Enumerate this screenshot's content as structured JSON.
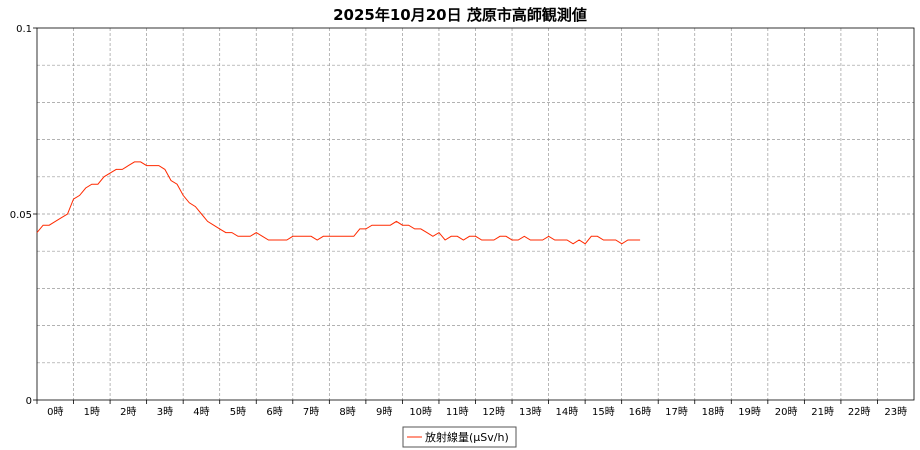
{
  "colors": {
    "series": "#ff2a00",
    "grid": "#999999",
    "axis": "#000000",
    "background": "#ffffff"
  },
  "chart_data": {
    "type": "line",
    "title": "2025年10月20日 茂原市高師観測値",
    "xlabel": "",
    "ylabel": "",
    "xlim": [
      0,
      24
    ],
    "ylim": [
      0,
      0.1
    ],
    "grid": true,
    "legend_position": "bottom-center",
    "x_tick_labels": [
      "0時",
      "1時",
      "2時",
      "3時",
      "4時",
      "5時",
      "6時",
      "7時",
      "8時",
      "9時",
      "10時",
      "11時",
      "12時",
      "13時",
      "14時",
      "15時",
      "16時",
      "17時",
      "18時",
      "19時",
      "20時",
      "21時",
      "22時",
      "23時"
    ],
    "y_tick_labels": [
      "0",
      "0.05",
      "0.1"
    ],
    "y_ticks": [
      0,
      0.05,
      0.1
    ],
    "series": [
      {
        "name": "放射線量(μSv/h)",
        "x_step_hours": 0.1667,
        "values": [
          0.045,
          0.047,
          0.047,
          0.048,
          0.049,
          0.05,
          0.054,
          0.055,
          0.057,
          0.058,
          0.058,
          0.06,
          0.061,
          0.062,
          0.062,
          0.063,
          0.064,
          0.064,
          0.063,
          0.063,
          0.063,
          0.062,
          0.059,
          0.058,
          0.055,
          0.053,
          0.052,
          0.05,
          0.048,
          0.047,
          0.046,
          0.045,
          0.045,
          0.044,
          0.044,
          0.044,
          0.045,
          0.044,
          0.043,
          0.043,
          0.043,
          0.043,
          0.044,
          0.044,
          0.044,
          0.044,
          0.043,
          0.044,
          0.044,
          0.044,
          0.044,
          0.044,
          0.044,
          0.046,
          0.046,
          0.047,
          0.047,
          0.047,
          0.047,
          0.048,
          0.047,
          0.047,
          0.046,
          0.046,
          0.045,
          0.044,
          0.045,
          0.043,
          0.044,
          0.044,
          0.043,
          0.044,
          0.044,
          0.043,
          0.043,
          0.043,
          0.044,
          0.044,
          0.043,
          0.043,
          0.044,
          0.043,
          0.043,
          0.043,
          0.044,
          0.043,
          0.043,
          0.043,
          0.042,
          0.043,
          0.042,
          0.044,
          0.044,
          0.043,
          0.043,
          0.043,
          0.042,
          0.043,
          0.043,
          0.043
        ]
      }
    ]
  }
}
